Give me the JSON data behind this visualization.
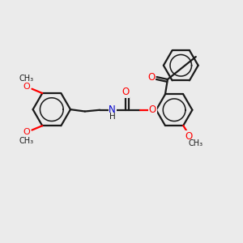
{
  "background_color": "#ebebeb",
  "bond_color": "#1a1a1a",
  "oxygen_color": "#ff0000",
  "nitrogen_color": "#0000cc",
  "line_width": 1.6,
  "figsize": [
    3.0,
    3.0
  ],
  "dpi": 100,
  "xlim": [
    0,
    10
  ],
  "ylim": [
    0,
    10
  ]
}
